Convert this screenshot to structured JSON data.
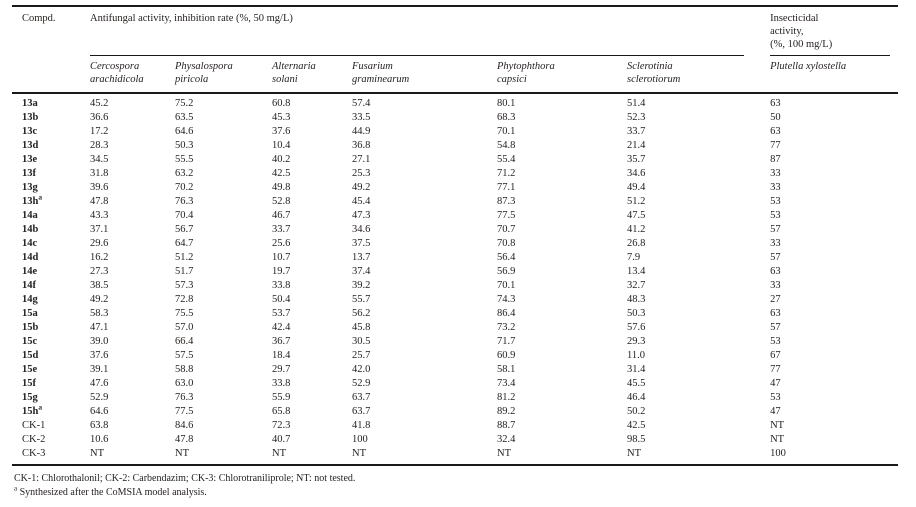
{
  "table": {
    "header": {
      "compd": "Compd.",
      "antifungal_group": "Antifungal activity, inhibition rate (%, 50 mg/L)",
      "insecticidal_group": "Insecticidal\nactivity,\n(%, 100 mg/L)",
      "species": [
        "Cercospora\narachidicola",
        "Physalospora\npiricola",
        "Alternaria\nsolani",
        "Fusarium\ngraminearum",
        "Phytophthora\ncapsici",
        "Sclerotinia\nsclerotiorum"
      ],
      "insect_species": "Plutella xylostella"
    },
    "rows": [
      {
        "compd": "13a",
        "sup": "",
        "bold": true,
        "values": [
          "45.2",
          "75.2",
          "60.8",
          "57.4",
          "80.1",
          "51.4",
          "63"
        ]
      },
      {
        "compd": "13b",
        "sup": "",
        "bold": true,
        "values": [
          "36.6",
          "63.5",
          "45.3",
          "33.5",
          "68.3",
          "52.3",
          "50"
        ]
      },
      {
        "compd": "13c",
        "sup": "",
        "bold": true,
        "values": [
          "17.2",
          "64.6",
          "37.6",
          "44.9",
          "70.1",
          "33.7",
          "63"
        ]
      },
      {
        "compd": "13d",
        "sup": "",
        "bold": true,
        "values": [
          "28.3",
          "50.3",
          "10.4",
          "36.8",
          "54.8",
          "21.4",
          "77"
        ]
      },
      {
        "compd": "13e",
        "sup": "",
        "bold": true,
        "values": [
          "34.5",
          "55.5",
          "40.2",
          "27.1",
          "55.4",
          "35.7",
          "87"
        ]
      },
      {
        "compd": "13f",
        "sup": "",
        "bold": true,
        "values": [
          "31.8",
          "63.2",
          "42.5",
          "25.3",
          "71.2",
          "34.6",
          "33"
        ]
      },
      {
        "compd": "13g",
        "sup": "",
        "bold": true,
        "values": [
          "39.6",
          "70.2",
          "49.8",
          "49.2",
          "77.1",
          "49.4",
          "33"
        ]
      },
      {
        "compd": "13h",
        "sup": "a",
        "bold": true,
        "values": [
          "47.8",
          "76.3",
          "52.8",
          "45.4",
          "87.3",
          "51.2",
          "53"
        ]
      },
      {
        "compd": "14a",
        "sup": "",
        "bold": true,
        "values": [
          "43.3",
          "70.4",
          "46.7",
          "47.3",
          "77.5",
          "47.5",
          "53"
        ]
      },
      {
        "compd": "14b",
        "sup": "",
        "bold": true,
        "values": [
          "37.1",
          "56.7",
          "33.7",
          "34.6",
          "70.7",
          "41.2",
          "57"
        ]
      },
      {
        "compd": "14c",
        "sup": "",
        "bold": true,
        "values": [
          "29.6",
          "64.7",
          "25.6",
          "37.5",
          "70.8",
          "26.8",
          "33"
        ]
      },
      {
        "compd": "14d",
        "sup": "",
        "bold": true,
        "values": [
          "16.2",
          "51.2",
          "10.7",
          "13.7",
          "56.4",
          "7.9",
          "57"
        ]
      },
      {
        "compd": "14e",
        "sup": "",
        "bold": true,
        "values": [
          "27.3",
          "51.7",
          "19.7",
          "37.4",
          "56.9",
          "13.4",
          "63"
        ]
      },
      {
        "compd": "14f",
        "sup": "",
        "bold": true,
        "values": [
          "38.5",
          "57.3",
          "33.8",
          "39.2",
          "70.1",
          "32.7",
          "33"
        ]
      },
      {
        "compd": "14g",
        "sup": "",
        "bold": true,
        "values": [
          "49.2",
          "72.8",
          "50.4",
          "55.7",
          "74.3",
          "48.3",
          "27"
        ]
      },
      {
        "compd": "15a",
        "sup": "",
        "bold": true,
        "values": [
          "58.3",
          "75.5",
          "53.7",
          "56.2",
          "86.4",
          "50.3",
          "63"
        ]
      },
      {
        "compd": "15b",
        "sup": "",
        "bold": true,
        "values": [
          "47.1",
          "57.0",
          "42.4",
          "45.8",
          "73.2",
          "57.6",
          "57"
        ]
      },
      {
        "compd": "15c",
        "sup": "",
        "bold": true,
        "values": [
          "39.0",
          "66.4",
          "36.7",
          "30.5",
          "71.7",
          "29.3",
          "53"
        ]
      },
      {
        "compd": "15d",
        "sup": "",
        "bold": true,
        "values": [
          "37.6",
          "57.5",
          "18.4",
          "25.7",
          "60.9",
          "11.0",
          "67"
        ]
      },
      {
        "compd": "15e",
        "sup": "",
        "bold": true,
        "values": [
          "39.1",
          "58.8",
          "29.7",
          "42.0",
          "58.1",
          "31.4",
          "77"
        ]
      },
      {
        "compd": "15f",
        "sup": "",
        "bold": true,
        "values": [
          "47.6",
          "63.0",
          "33.8",
          "52.9",
          "73.4",
          "45.5",
          "47"
        ]
      },
      {
        "compd": "15g",
        "sup": "",
        "bold": true,
        "values": [
          "52.9",
          "76.3",
          "55.9",
          "63.7",
          "81.2",
          "46.4",
          "53"
        ]
      },
      {
        "compd": "15h",
        "sup": "a",
        "bold": true,
        "values": [
          "64.6",
          "77.5",
          "65.8",
          "63.7",
          "89.2",
          "50.2",
          "47"
        ]
      },
      {
        "compd": "CK-1",
        "sup": "",
        "bold": false,
        "values": [
          "63.8",
          "84.6",
          "72.3",
          "41.8",
          "88.7",
          "42.5",
          "NT"
        ]
      },
      {
        "compd": "CK-2",
        "sup": "",
        "bold": false,
        "values": [
          "10.6",
          "47.8",
          "40.7",
          "100",
          "32.4",
          "98.5",
          "NT"
        ]
      },
      {
        "compd": "CK-3",
        "sup": "",
        "bold": false,
        "values": [
          "NT",
          "NT",
          "NT",
          "NT",
          "NT",
          "NT",
          "100"
        ]
      }
    ]
  },
  "footnotes": {
    "line1": "CK-1: Chlorothalonil; CK-2: Carbendazim; CK-3: Chlorotraniliprole; NT: not tested.",
    "line2_marker": "a",
    "line2_text": "Synthesized after the CoMSIA model analysis."
  },
  "colors": {
    "text": "#262220",
    "rule": "#1b1918",
    "background": "#ffffff"
  }
}
